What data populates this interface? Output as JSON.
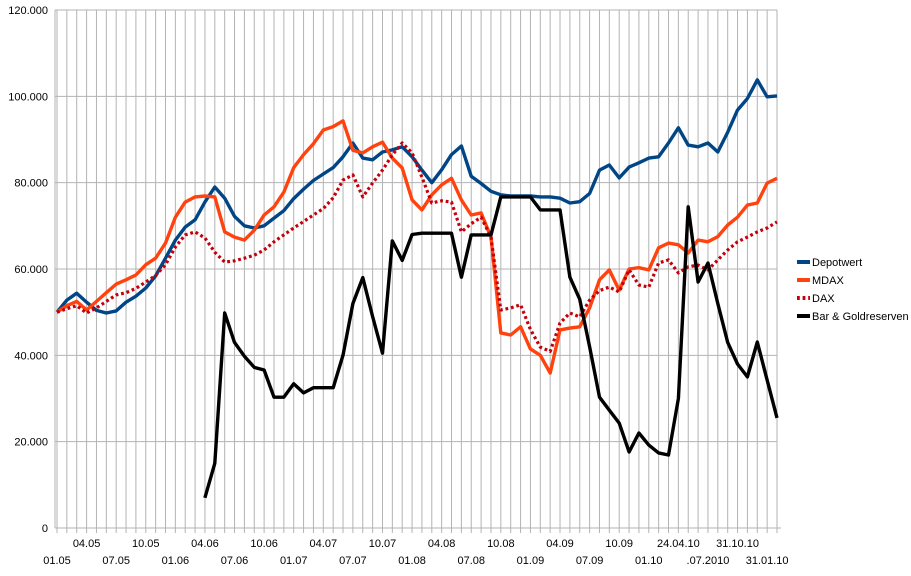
{
  "chart_data": {
    "type": "line",
    "title": "",
    "grid": true,
    "legend_position": "right",
    "colors": {
      "grid": "#b3b3b3",
      "axis": "#b3b3b3",
      "background": "#ffffff",
      "text": "#000000"
    },
    "y_axis": {
      "min": 0,
      "max": 120000,
      "step": 20000,
      "tick_labels": [
        "120.000",
        "100.000",
        "80.000",
        "60.000",
        "40.000",
        "20.000",
        "0"
      ]
    },
    "x_axis": {
      "unit": "month-index from 01.05 (Jan 2005), 74 categories",
      "row1_labels": [
        {
          "m": 3,
          "label": "04.05"
        },
        {
          "m": 9,
          "label": "10.05"
        },
        {
          "m": 15,
          "label": "04.06"
        },
        {
          "m": 21,
          "label": "10.06"
        },
        {
          "m": 27,
          "label": "04.07"
        },
        {
          "m": 33,
          "label": "10.07"
        },
        {
          "m": 39,
          "label": "04.08"
        },
        {
          "m": 45,
          "label": "10.08"
        },
        {
          "m": 51,
          "label": "04.09"
        },
        {
          "m": 57,
          "label": "10.09"
        },
        {
          "m": 63,
          "label": "24.04.10"
        },
        {
          "m": 69,
          "label": "31.10.10"
        }
      ],
      "row2_labels": [
        {
          "m": 0,
          "label": "01.05"
        },
        {
          "m": 6,
          "label": "07.05"
        },
        {
          "m": 12,
          "label": "01.06"
        },
        {
          "m": 18,
          "label": "07.06"
        },
        {
          "m": 24,
          "label": "01.07"
        },
        {
          "m": 30,
          "label": "07.07"
        },
        {
          "m": 36,
          "label": "01.08"
        },
        {
          "m": 42,
          "label": "07.08"
        },
        {
          "m": 48,
          "label": "01.09"
        },
        {
          "m": 54,
          "label": "07.09"
        },
        {
          "m": 60,
          "label": "01.10"
        },
        {
          "m": 66,
          "label": ".07.2010"
        },
        {
          "m": 72,
          "label": "31.01.10"
        }
      ]
    },
    "series": [
      {
        "name": "Depotwert",
        "color": "#004586",
        "style": "solid",
        "values": [
          50000,
          52800,
          54400,
          52300,
          50400,
          49800,
          50300,
          52300,
          53700,
          55600,
          58400,
          62500,
          66700,
          69700,
          71400,
          75500,
          79000,
          76400,
          72200,
          70000,
          69500,
          70000,
          71800,
          73500,
          76300,
          78500,
          80500,
          82000,
          83500,
          86000,
          89200,
          85700,
          85300,
          87100,
          87600,
          88300,
          86000,
          82900,
          80000,
          83000,
          86500,
          88500,
          81500,
          79800,
          78000,
          77200,
          76900,
          76900,
          76900,
          76700,
          76700,
          76400,
          75300,
          75600,
          77500,
          82900,
          84100,
          81100,
          83600,
          84600,
          85700,
          86000,
          89200,
          92700,
          88700,
          88300,
          89200,
          87100,
          91700,
          96800,
          99500,
          103800,
          99900,
          100100
        ]
      },
      {
        "name": "MDAX",
        "color": "#ff420e",
        "style": "solid",
        "values": [
          50000,
          51500,
          52500,
          50500,
          52500,
          54500,
          56500,
          57500,
          58600,
          61000,
          62500,
          66000,
          72000,
          75500,
          76700,
          76900,
          76700,
          68600,
          67400,
          66700,
          69000,
          72500,
          74400,
          77800,
          83500,
          86500,
          89000,
          92200,
          93000,
          94300,
          87500,
          86900,
          88300,
          89400,
          85700,
          83400,
          76000,
          73700,
          77200,
          79500,
          81000,
          76000,
          72500,
          73000,
          67400,
          45200,
          44700,
          46600,
          41500,
          40000,
          35900,
          45900,
          46300,
          46600,
          51000,
          57500,
          59800,
          55100,
          60000,
          60300,
          59800,
          64900,
          66000,
          65600,
          63700,
          66700,
          66300,
          67500,
          70200,
          72000,
          74800,
          75300,
          79900,
          81000
        ]
      },
      {
        "name": "DAX",
        "color": "#c5000b",
        "style": "dotted",
        "values": [
          50000,
          50800,
          51500,
          49800,
          51000,
          52500,
          54000,
          54500,
          55500,
          57000,
          58500,
          61000,
          65100,
          67900,
          68600,
          67200,
          63900,
          61600,
          61900,
          62500,
          63200,
          64400,
          66300,
          67900,
          69500,
          71000,
          72500,
          74000,
          76500,
          80600,
          81800,
          76700,
          79900,
          82900,
          86400,
          89200,
          86900,
          81300,
          75300,
          75800,
          75500,
          68600,
          70500,
          72000,
          67400,
          50500,
          51000,
          51700,
          46000,
          41900,
          40900,
          47500,
          49800,
          48900,
          52800,
          55000,
          55800,
          54700,
          59800,
          56300,
          55800,
          61400,
          62100,
          59100,
          60500,
          60900,
          59800,
          62100,
          64400,
          66300,
          67400,
          68600,
          69500,
          70900
        ]
      },
      {
        "name": "Bar & Goldreserven",
        "color": "#000000",
        "style": "solid",
        "values": [
          null,
          null,
          null,
          null,
          null,
          null,
          null,
          null,
          null,
          null,
          null,
          null,
          null,
          null,
          null,
          7000,
          15000,
          49800,
          43000,
          39800,
          37200,
          36600,
          30300,
          30300,
          33400,
          31300,
          32500,
          32500,
          32500,
          40000,
          52000,
          58000,
          49000,
          40500,
          66500,
          62000,
          68000,
          68300,
          68300,
          68300,
          68300,
          58100,
          67900,
          67900,
          67900,
          76700,
          76700,
          76700,
          76700,
          73700,
          73700,
          73700,
          58100,
          53000,
          42000,
          30300,
          27300,
          24300,
          17600,
          22000,
          19200,
          17400,
          16900,
          30000,
          74400,
          57000,
          61400,
          52000,
          43000,
          38000,
          35000,
          43100,
          34300,
          25500
        ]
      }
    ]
  }
}
